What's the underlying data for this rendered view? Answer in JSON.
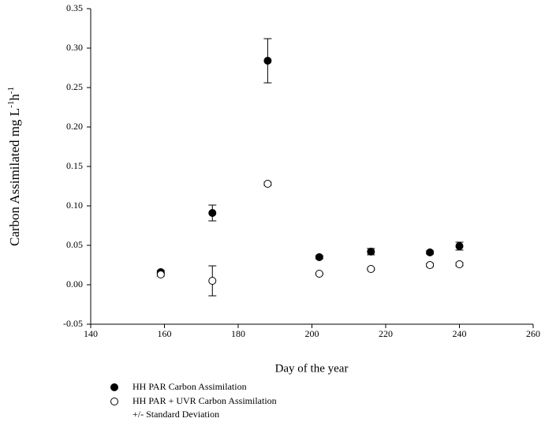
{
  "chart_data": {
    "type": "scatter",
    "xlabel": "Day of the year",
    "ylabel_parts": [
      "Carbon Assimilated mg L",
      "-1",
      "h",
      "-1"
    ],
    "xlim": [
      140,
      260
    ],
    "xticks": [
      140,
      160,
      180,
      200,
      220,
      240,
      260
    ],
    "ylim": [
      -0.05,
      0.35
    ],
    "yticks": [
      {
        "value": -0.05,
        "label": "-0.05"
      },
      {
        "value": 0,
        "label": "0.00"
      },
      {
        "value": 0.05,
        "label": "0.05"
      },
      {
        "value": 0.1,
        "label": "0.10"
      },
      {
        "value": 0.15,
        "label": "0.15"
      },
      {
        "value": 0.2,
        "label": "0.20"
      },
      {
        "value": 0.25,
        "label": "0.25"
      },
      {
        "value": 0.3,
        "label": "0.30"
      },
      {
        "value": 0.35,
        "label": "0.35"
      }
    ],
    "series": [
      {
        "name": "HH PAR Carbon Assimilation",
        "color": "#000000",
        "filled": true,
        "x": [
          159,
          173,
          188,
          202,
          216,
          232,
          240
        ],
        "values": [
          0.016,
          0.091,
          0.284,
          0.035,
          0.042,
          0.041,
          0.049
        ],
        "errors": [
          0.002,
          0.01,
          0.028,
          0.002,
          0.004,
          0.002,
          0.005
        ]
      },
      {
        "name": "HH PAR + UVR Carbon Assimilation",
        "color": "#000000",
        "filled": false,
        "x": [
          159,
          173,
          188,
          202,
          216,
          232,
          240
        ],
        "values": [
          0.013,
          0.005,
          0.128,
          0.014,
          0.02,
          0.025,
          0.026
        ],
        "errors": [
          0.002,
          0.019,
          0.002,
          0.001,
          0.001,
          0.002,
          0.002
        ]
      }
    ],
    "error_label": "+/- Standard Deviation"
  }
}
